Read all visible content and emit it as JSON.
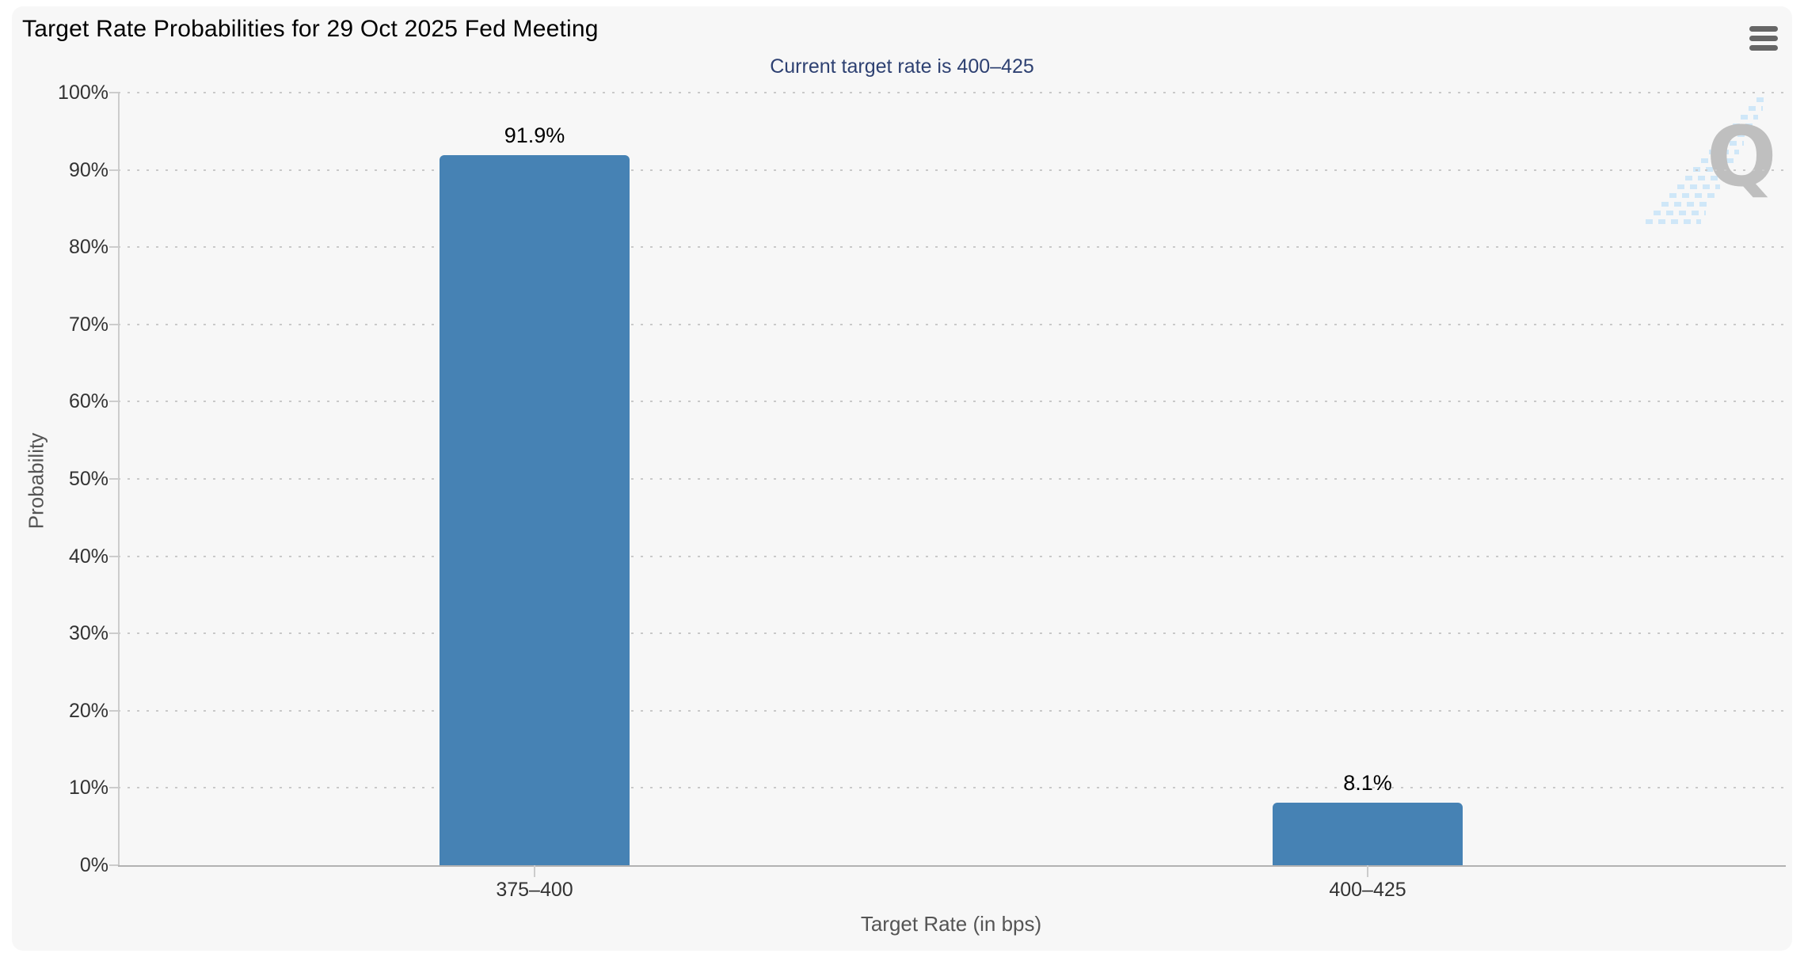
{
  "header": {
    "title": "Target Rate Probabilities for 29 Oct 2025 Fed Meeting",
    "menu_icon": "hamburger-menu-icon"
  },
  "chart_data": {
    "type": "bar",
    "title": "Target Rate Probabilities for 29 Oct 2025 Fed Meeting",
    "subtitle": "Current target rate is 400–425",
    "categories": [
      "375–400",
      "400–425"
    ],
    "values": [
      91.9,
      8.1
    ],
    "value_labels": [
      "91.9%",
      "8.1%"
    ],
    "xlabel": "Target Rate (in bps)",
    "ylabel": "Probability",
    "ylim": [
      0,
      100
    ],
    "ytick_step": 10,
    "ytick_labels": [
      "0%",
      "10%",
      "20%",
      "30%",
      "40%",
      "50%",
      "60%",
      "70%",
      "80%",
      "90%",
      "100%"
    ],
    "grid": "dotted horizontal gridlines, on",
    "legend": "none",
    "bar_color": "#4682b4"
  },
  "colors": {
    "page_bg": "#ffffff",
    "panel_bg": "#f7f7f7",
    "title_text": "#000000",
    "subtitle_text": "#2e4172",
    "axis_label": "#333333",
    "axis_title": "#555555",
    "grid": "#c9c9c9",
    "bar": "#4682b4",
    "menu_icon": "#666666",
    "watermark_letter": "#bfbfbf",
    "watermark_dash": "#cfe7f8"
  },
  "watermark": {
    "name": "quandl-logo",
    "letter": "Q"
  }
}
